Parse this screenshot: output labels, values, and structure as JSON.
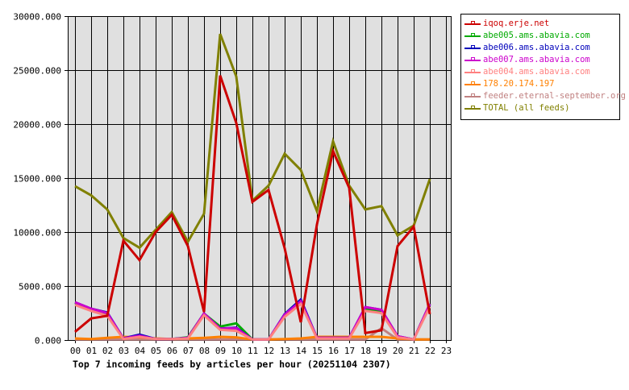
{
  "chart_data": {
    "type": "line",
    "title": "Top 7 incoming feeds by articles per hour (20251104 2307)",
    "xlabel": "",
    "ylabel": "",
    "ylim": [
      0,
      30000
    ],
    "yticks": [
      "0.000",
      "5000.000",
      "10000.000",
      "15000.000",
      "20000.000",
      "25000.000",
      "30000.000"
    ],
    "x": [
      "00",
      "01",
      "02",
      "03",
      "04",
      "05",
      "06",
      "07",
      "08",
      "09",
      "10",
      "11",
      "12",
      "13",
      "14",
      "15",
      "16",
      "17",
      "18",
      "19",
      "20",
      "21",
      "22",
      "23"
    ],
    "grid": true,
    "legend_position": "right",
    "series": [
      {
        "name": "iqoq.erje.net",
        "color": "#cc0000",
        "values": [
          750,
          2000,
          2250,
          9200,
          7400,
          10000,
          11600,
          8700,
          2600,
          24500,
          20100,
          12800,
          13900,
          8500,
          1650,
          10700,
          17500,
          14100,
          650,
          900,
          8700,
          10500,
          2400
        ]
      },
      {
        "name": "abe005.ams.abavia.com",
        "color": "#00aa00",
        "values": [
          3450,
          2850,
          2450,
          150,
          350,
          100,
          100,
          250,
          2450,
          1250,
          1550,
          50,
          50,
          2300,
          3500,
          200,
          200,
          200,
          2900,
          2650,
          300,
          50,
          3350
        ]
      },
      {
        "name": "abe006.ams.abavia.com",
        "color": "#0000bb",
        "values": [
          3500,
          2900,
          2550,
          150,
          500,
          100,
          100,
          200,
          2450,
          1050,
          1150,
          50,
          50,
          2400,
          3750,
          200,
          200,
          200,
          3050,
          2800,
          350,
          50,
          3300
        ]
      },
      {
        "name": "abe007.ams.abavia.com",
        "color": "#cc00cc",
        "values": [
          3500,
          2900,
          2500,
          150,
          400,
          100,
          100,
          200,
          2450,
          1050,
          1100,
          50,
          50,
          2350,
          3600,
          200,
          200,
          200,
          3050,
          2800,
          350,
          50,
          3350
        ]
      },
      {
        "name": "abe004.ams.abavia.com",
        "color": "#ff8080",
        "values": [
          3250,
          2700,
          2250,
          100,
          300,
          100,
          100,
          150,
          2300,
          950,
          850,
          50,
          50,
          2150,
          3350,
          150,
          150,
          150,
          2700,
          2500,
          250,
          50,
          3100
        ]
      },
      {
        "name": "178.20.174.197",
        "color": "#ff8000",
        "values": [
          150,
          100,
          200,
          300,
          250,
          150,
          100,
          150,
          200,
          300,
          250,
          50,
          50,
          100,
          150,
          300,
          300,
          300,
          300,
          300,
          150,
          50,
          50
        ]
      },
      {
        "name": "feeder.eternal-september.org",
        "color": "#c08080",
        "values": [
          50,
          50,
          50,
          50,
          50,
          50,
          50,
          50,
          50,
          50,
          50,
          50,
          50,
          50,
          50,
          50,
          50,
          50,
          50,
          1100,
          50,
          50,
          50
        ]
      },
      {
        "name": "TOTAL (all feeds)",
        "color": "#808000",
        "values": [
          14250,
          13400,
          12100,
          9450,
          8550,
          10200,
          11850,
          9100,
          11700,
          28350,
          24400,
          12900,
          14300,
          17250,
          15750,
          11950,
          18400,
          14300,
          12100,
          12400,
          9700,
          10600,
          14900
        ]
      }
    ]
  },
  "legend": {
    "items": [
      {
        "label": "iqoq.erje.net",
        "color": "#cc0000"
      },
      {
        "label": "abe005.ams.abavia.com",
        "color": "#00aa00"
      },
      {
        "label": "abe006.ams.abavia.com",
        "color": "#0000bb"
      },
      {
        "label": "abe007.ams.abavia.com",
        "color": "#cc00cc"
      },
      {
        "label": "abe004.ams.abavia.com",
        "color": "#ff8080"
      },
      {
        "label": "178.20.174.197",
        "color": "#ff8000"
      },
      {
        "label": "feeder.eternal-september.org",
        "color": "#c08080"
      },
      {
        "label": "TOTAL (all feeds)",
        "color": "#808000"
      }
    ]
  },
  "colors": {
    "plot_background": "#e0e0e0",
    "grid": "#000000",
    "text": "#000000"
  }
}
